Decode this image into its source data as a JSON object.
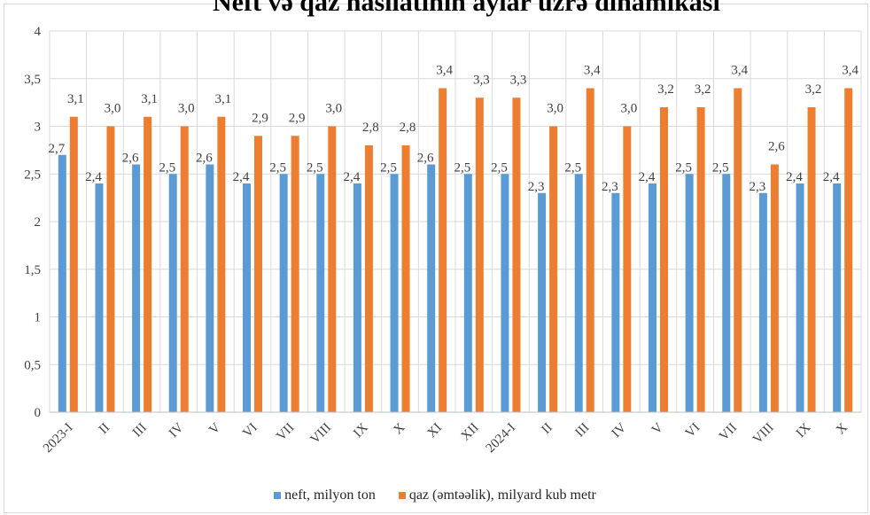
{
  "chart_data": {
    "type": "bar",
    "title": "Neft və qaz hasilatının aylar üzrə dinamikası",
    "categories": [
      "2023-I",
      "II",
      "III",
      "IV",
      "V",
      "VI",
      "VII",
      "VIII",
      "IX",
      "X",
      "XI",
      "XII",
      "2024-I",
      "II",
      "III",
      "IV",
      "V",
      "VI",
      "VII",
      "VIII",
      "IX",
      "X"
    ],
    "series": [
      {
        "name": "neft, milyon ton",
        "color": "#5b9bd5",
        "values": [
          2.7,
          2.4,
          2.6,
          2.5,
          2.6,
          2.4,
          2.5,
          2.5,
          2.4,
          2.5,
          2.6,
          2.5,
          2.5,
          2.3,
          2.5,
          2.3,
          2.4,
          2.5,
          2.5,
          2.3,
          2.4,
          2.4
        ],
        "labels": [
          "2,7",
          "2,4",
          "2,6",
          "2,5",
          "2,6",
          "2,4",
          "2,5",
          "2,5",
          "2,4",
          "2,5",
          "2,6",
          "2,5",
          "2,5",
          "2,3",
          "2,5",
          "2,3",
          "2,4",
          "2,5",
          "2,5",
          "2,3",
          "2,4",
          "2,4"
        ]
      },
      {
        "name": "qaz (əmtəəlik),  milyard kub metr",
        "color": "#ed7d31",
        "values": [
          3.1,
          3.0,
          3.1,
          3.0,
          3.1,
          2.9,
          2.9,
          3.0,
          2.8,
          2.8,
          3.4,
          3.3,
          3.3,
          3.0,
          3.4,
          3.0,
          3.2,
          3.2,
          3.4,
          2.6,
          3.2,
          3.4
        ],
        "labels": [
          "3,1",
          "3,0",
          "3,1",
          "3,0",
          "3,1",
          "2,9",
          "2,9",
          "3,0",
          "2,8",
          "2,8",
          "3,4",
          "3,3",
          "3,3",
          "3,0",
          "3,4",
          "3,0",
          "3,2",
          "3,2",
          "3,4",
          "2,6",
          "3,2",
          "3,4"
        ]
      }
    ],
    "ylim": [
      0,
      4
    ],
    "yticks": [
      0,
      0.5,
      1,
      1.5,
      2,
      2.5,
      3,
      3.5,
      4
    ],
    "ytick_labels": [
      "0",
      "0,5",
      "1",
      "1,5",
      "2",
      "2,5",
      "3",
      "3,5",
      "4"
    ],
    "grid": true,
    "legend_position": "bottom"
  }
}
